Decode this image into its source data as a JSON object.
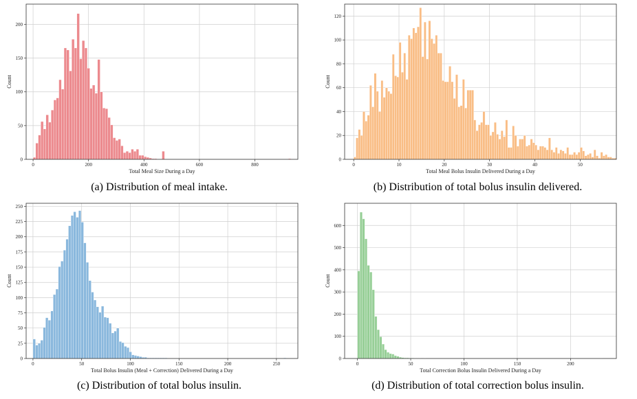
{
  "chart_data": [
    {
      "type": "bar",
      "subtype": "histogram",
      "caption": "(a) Distribution of meal intake.",
      "xlabel": "Total Meal Size During a Day",
      "ylabel": "Count",
      "xlim": [
        -25,
        955
      ],
      "ylim": [
        0,
        230
      ],
      "xticks": [
        0,
        200,
        400,
        600,
        800
      ],
      "yticks": [
        0,
        50,
        100,
        150,
        200
      ],
      "grid": true,
      "color": "#ec8a8e",
      "edge_color": "#ffffff",
      "bin_start": 0,
      "bin_width": 9.3,
      "values": [
        3,
        24,
        36,
        56,
        45,
        66,
        55,
        73,
        88,
        91,
        118,
        104,
        165,
        162,
        131,
        178,
        165,
        216,
        149,
        176,
        165,
        135,
        105,
        110,
        98,
        148,
        100,
        76,
        75,
        62,
        51,
        32,
        28,
        30,
        20,
        10,
        12,
        10,
        15,
        12,
        15,
        6,
        6,
        4,
        3,
        2,
        1,
        1,
        0,
        0,
        12,
        0,
        0,
        0,
        0,
        0,
        0,
        0,
        0,
        0,
        0,
        0,
        0,
        0,
        0,
        0,
        0,
        0,
        0,
        0,
        0,
        0,
        0,
        0,
        0,
        0,
        0,
        0,
        0,
        0,
        0,
        0,
        0,
        0,
        0,
        0,
        0,
        0,
        0,
        0,
        0,
        0,
        0,
        0,
        0,
        0,
        0,
        0,
        0,
        1
      ]
    },
    {
      "type": "bar",
      "subtype": "histogram",
      "caption": "(b) Distribution of total bolus insulin delivered.",
      "xlabel": "Total Meal Bolus Insulin Delivered During a Day",
      "ylabel": "Count",
      "xlim": [
        -2,
        58
      ],
      "ylim": [
        0,
        130
      ],
      "xticks": [
        0,
        10,
        20,
        30,
        40,
        50
      ],
      "yticks": [
        0,
        20,
        40,
        60,
        80,
        100,
        120
      ],
      "grid": true,
      "color": "#f9bd85",
      "edge_color": "#ffffff",
      "bin_start": 0,
      "bin_width": 0.5,
      "values": [
        2,
        18,
        25,
        20,
        40,
        32,
        37,
        62,
        44,
        72,
        57,
        40,
        66,
        52,
        60,
        57,
        55,
        88,
        70,
        69,
        98,
        73,
        89,
        67,
        104,
        101,
        110,
        106,
        111,
        127,
        86,
        115,
        84,
        116,
        101,
        97,
        104,
        89,
        89,
        66,
        65,
        65,
        78,
        65,
        51,
        71,
        44,
        45,
        67,
        43,
        58,
        58,
        58,
        33,
        24,
        29,
        31,
        40,
        29,
        29,
        20,
        23,
        31,
        21,
        17,
        24,
        19,
        33,
        10,
        10,
        28,
        20,
        11,
        17,
        17,
        20,
        11,
        12,
        17,
        14,
        12,
        8,
        11,
        11,
        10,
        8,
        18,
        8,
        6,
        10,
        5,
        8,
        7,
        5,
        10,
        4,
        4,
        6,
        4,
        6,
        10,
        7,
        3,
        4,
        5,
        2,
        8,
        3,
        1,
        6,
        3,
        4,
        2,
        2,
        1,
        1
      ]
    },
    {
      "type": "bar",
      "subtype": "histogram",
      "caption": "(c) Distribution of total bolus insulin.",
      "xlabel": "Total Bolus Insulin (Meal + Correction) Delivered During a Day",
      "ylabel": "Count",
      "xlim": [
        -7,
        272
      ],
      "ylim": [
        0,
        255
      ],
      "xticks": [
        0,
        50,
        100,
        150,
        200,
        250
      ],
      "yticks": [
        0,
        25,
        50,
        75,
        100,
        125,
        150,
        175,
        200,
        225,
        250
      ],
      "grid": true,
      "color": "#8ab8dd",
      "edge_color": "#ffffff",
      "bin_start": 0,
      "bin_width": 2.6,
      "values": [
        32,
        22,
        25,
        30,
        51,
        67,
        63,
        78,
        105,
        114,
        151,
        160,
        178,
        196,
        218,
        235,
        241,
        232,
        243,
        224,
        190,
        158,
        128,
        109,
        96,
        85,
        76,
        86,
        68,
        67,
        58,
        42,
        45,
        50,
        28,
        26,
        20,
        18,
        11,
        6,
        5,
        4,
        3,
        2,
        2,
        1,
        1,
        1,
        1,
        1,
        1,
        1,
        1,
        0,
        0,
        0,
        0,
        0,
        0,
        0,
        0,
        0,
        0,
        0,
        0,
        0,
        0,
        0,
        0,
        0,
        0,
        0,
        0,
        0,
        0,
        0,
        0,
        0,
        0,
        0,
        0,
        0,
        0,
        0,
        0,
        0,
        0,
        0,
        0,
        0,
        0,
        0,
        0,
        0,
        0,
        0,
        0,
        0,
        0,
        1
      ]
    },
    {
      "type": "bar",
      "subtype": "histogram",
      "caption": "(d) Distribution of total correction bolus insulin.",
      "xlabel": "Total Correction Bolus Insulin Delivered During a Day",
      "ylabel": "Count",
      "xlim": [
        -12,
        243
      ],
      "ylim": [
        0,
        700
      ],
      "xticks": [
        0,
        50,
        100,
        150,
        200
      ],
      "yticks": [
        0,
        100,
        200,
        300,
        400,
        500,
        600
      ],
      "grid": true,
      "color": "#97cf97",
      "edge_color": "#ffffff",
      "bin_start": 0,
      "bin_width": 2.3,
      "values": [
        395,
        660,
        630,
        540,
        420,
        390,
        310,
        190,
        130,
        98,
        65,
        40,
        28,
        22,
        20,
        13,
        10,
        6,
        4,
        3,
        3,
        2,
        2,
        1,
        1,
        1,
        0,
        1,
        0,
        0,
        0,
        0,
        0,
        0,
        0,
        0,
        0,
        0,
        0,
        0,
        0,
        0,
        0,
        0,
        0,
        0,
        0,
        0,
        0,
        0,
        0,
        0,
        0,
        0,
        0,
        0,
        0,
        0,
        0,
        0,
        0,
        0,
        0,
        0,
        0,
        0,
        0,
        0,
        0,
        0,
        0,
        0,
        0,
        0,
        0,
        0,
        0,
        0,
        0,
        0,
        0,
        0,
        0,
        0,
        0,
        0,
        0,
        0,
        0,
        0,
        0,
        0,
        0,
        0,
        0,
        0,
        0,
        0,
        0,
        1
      ]
    }
  ]
}
